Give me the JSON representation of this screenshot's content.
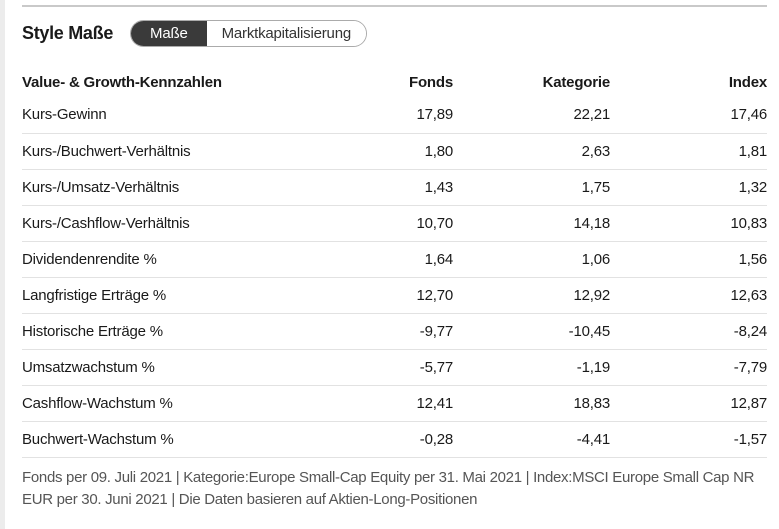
{
  "header": {
    "title": "Style Maße",
    "tabs": [
      {
        "label": "Maße",
        "selected": true
      },
      {
        "label": "Marktkapitalisierung",
        "selected": false
      }
    ]
  },
  "table": {
    "columns": [
      "Value- & Growth-Kennzahlen",
      "Fonds",
      "Kategorie",
      "Index"
    ],
    "rows": [
      {
        "label": "Kurs-Gewinn",
        "fonds": "17,89",
        "kategorie": "22,21",
        "index": "17,46"
      },
      {
        "label": "Kurs-/Buchwert-Verhältnis",
        "fonds": "1,80",
        "kategorie": "2,63",
        "index": "1,81"
      },
      {
        "label": "Kurs-/Umsatz-Verhältnis",
        "fonds": "1,43",
        "kategorie": "1,75",
        "index": "1,32"
      },
      {
        "label": "Kurs-/Cashflow-Verhältnis",
        "fonds": "10,70",
        "kategorie": "14,18",
        "index": "10,83"
      },
      {
        "label": "Dividendenrendite %",
        "fonds": "1,64",
        "kategorie": "1,06",
        "index": "1,56"
      },
      {
        "label": "Langfristige Erträge %",
        "fonds": "12,70",
        "kategorie": "12,92",
        "index": "12,63"
      },
      {
        "label": "Historische Erträge %",
        "fonds": "-9,77",
        "kategorie": "-10,45",
        "index": "-8,24"
      },
      {
        "label": "Umsatzwachstum %",
        "fonds": "-5,77",
        "kategorie": "-1,19",
        "index": "-7,79"
      },
      {
        "label": "Cashflow-Wachstum %",
        "fonds": "12,41",
        "kategorie": "18,83",
        "index": "12,87"
      },
      {
        "label": "Buchwert-Wachstum %",
        "fonds": "-0,28",
        "kategorie": "-4,41",
        "index": "-1,57"
      }
    ]
  },
  "footnote": "Fonds per 09. Juli 2021 | Kategorie:Europe Small-Cap Equity per 31. Mai 2021 | Index:MSCI Europe Small Cap NR EUR per 30. Juni 2021 | Die Daten basieren auf Aktien-Long-Positionen",
  "colors": {
    "selected_tab_bg": "#3a3a3a",
    "tab_border": "#ababab",
    "row_separator": "#e2e2e2",
    "top_rule": "#c9c9c9",
    "footnote_text": "#555555",
    "body_text": "#1a1a1a"
  }
}
